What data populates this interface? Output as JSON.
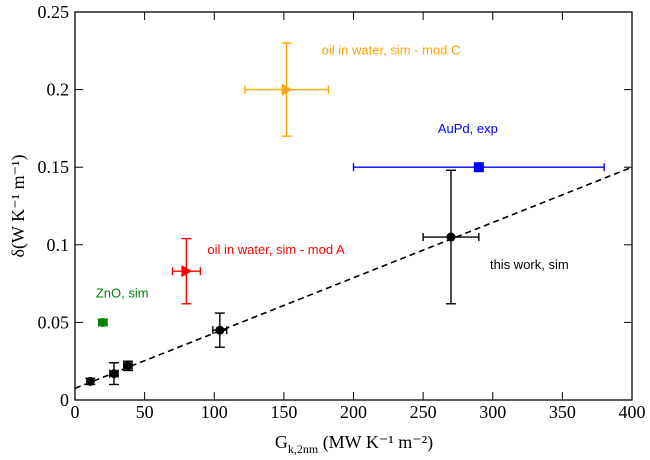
{
  "chart_data": {
    "type": "scatter",
    "x_label": {
      "main": "G",
      "sub": "k,2nm",
      "rest": " (MW K⁻¹ m⁻²)"
    },
    "y_label": "δ(W K⁻¹ m⁻¹)",
    "xlim": [
      0,
      400
    ],
    "ylim": [
      0,
      0.25
    ],
    "xticks": [
      0,
      50,
      100,
      150,
      200,
      250,
      300,
      350,
      400
    ],
    "yticks": [
      0,
      0.05,
      0.1,
      0.15,
      0.2,
      0.25
    ],
    "series": [
      {
        "name": "this work, sim",
        "color": "#000000",
        "marker": "circle",
        "x": [
          11,
          28,
          38,
          104,
          270
        ],
        "values": [
          0.012,
          0.017,
          0.022,
          0.045,
          0.105
        ],
        "x_err": [
          0,
          3,
          3,
          5,
          20
        ],
        "y_err": [
          0.002,
          0.007,
          0.003,
          0.011,
          0.043
        ]
      },
      {
        "name": "oil in water, sim - mod A",
        "color": "#ff0000",
        "marker": "triangle-right",
        "x": [
          80
        ],
        "values": [
          0.083
        ],
        "x_err": [
          10
        ],
        "y_err": [
          0.021
        ]
      },
      {
        "name": "oil in water, sim - mod C",
        "color": "#ffa500",
        "marker": "triangle-right",
        "x": [
          152
        ],
        "values": [
          0.2
        ],
        "x_err": [
          30
        ],
        "y_err": [
          0.03
        ]
      },
      {
        "name": "AuPd, exp",
        "color": "#0000ff",
        "marker": "square",
        "x": [
          290
        ],
        "values": [
          0.15
        ],
        "x_err": [
          90
        ],
        "y_err": [
          0
        ]
      },
      {
        "name": "ZnO, sim",
        "color": "#008000",
        "marker": "circle",
        "x": [
          20
        ],
        "values": [
          0.05
        ],
        "x_err": [
          3
        ],
        "y_err": [
          0.002
        ]
      }
    ],
    "fit": {
      "color": "#000000",
      "x": [
        0,
        400
      ],
      "values": [
        0.0075,
        0.15
      ]
    }
  }
}
